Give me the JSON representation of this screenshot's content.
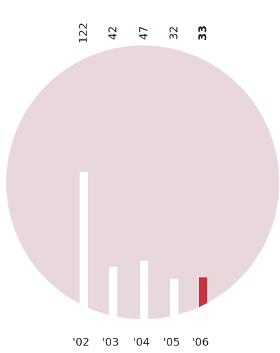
{
  "chart_data": {
    "type": "bar",
    "categories": [
      "'02",
      "'03",
      "'04",
      "'05",
      "'06"
    ],
    "values": [
      122,
      42,
      47,
      32,
      33
    ],
    "colors": [
      "#ffffff",
      "#ffffff",
      "#ffffff",
      "#ffffff",
      "#c8333d"
    ],
    "bold_labels": [
      false,
      false,
      false,
      false,
      true
    ],
    "background_color": "#e8d8dc"
  }
}
